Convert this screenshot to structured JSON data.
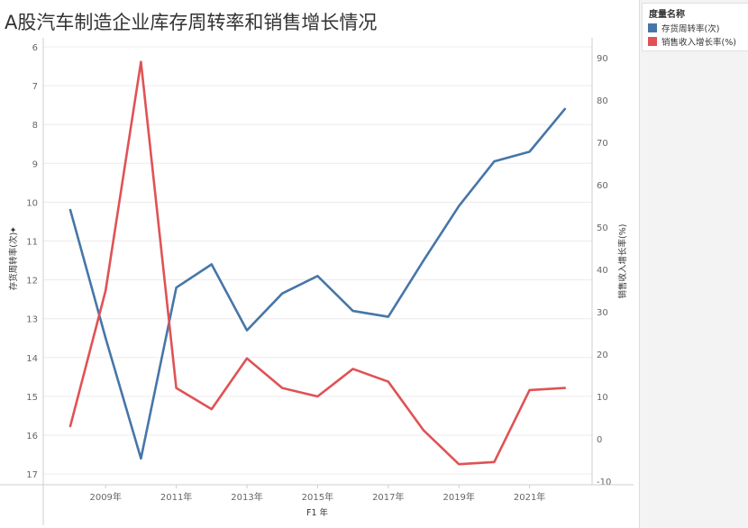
{
  "title": "A股汽车制造企业库存周转率和销售增长情况",
  "legend": {
    "title": "度量名称",
    "items": [
      {
        "label": "存货周转率(次)",
        "color": "#4676a8"
      },
      {
        "label": "销售收入增长率(%)",
        "color": "#e05255"
      }
    ]
  },
  "chart_data": {
    "type": "line",
    "title": "A股汽车制造企业库存周转率和销售增长情况",
    "xlabel": "F1 年",
    "x": [
      2008,
      2009,
      2010,
      2011,
      2012,
      2013,
      2014,
      2015,
      2016,
      2017,
      2018,
      2019,
      2020,
      2021,
      2022
    ],
    "x_tick_labels": [
      "2009年",
      "2011年",
      "2013年",
      "2015年",
      "2017年",
      "2019年",
      "2021年"
    ],
    "y_left": {
      "label": "存货周转率(次)",
      "range": [
        6,
        17.5
      ],
      "reversed": true,
      "ticks": [
        6,
        7,
        8,
        9,
        10,
        11,
        12,
        13,
        14,
        15,
        16,
        17
      ]
    },
    "y_right": {
      "label": "销售收入增长率(%)",
      "range": [
        -12,
        93
      ],
      "ticks": [
        -10,
        0,
        10,
        20,
        30,
        40,
        50,
        60,
        70,
        80,
        90
      ]
    },
    "series": [
      {
        "name": "存货周转率(次)",
        "axis": "left",
        "color": "#4676a8",
        "values": [
          10.2,
          13.5,
          16.6,
          12.2,
          11.6,
          13.3,
          12.35,
          11.9,
          12.8,
          12.95,
          11.5,
          10.1,
          8.95,
          8.7,
          7.6
        ]
      },
      {
        "name": "销售收入增长率(%)",
        "axis": "right",
        "color": "#e05255",
        "values": [
          3,
          35,
          89,
          12,
          7,
          19,
          12,
          10,
          16.5,
          13.5,
          2,
          -6,
          -5.5,
          11.5,
          12
        ]
      }
    ],
    "grid": true
  }
}
